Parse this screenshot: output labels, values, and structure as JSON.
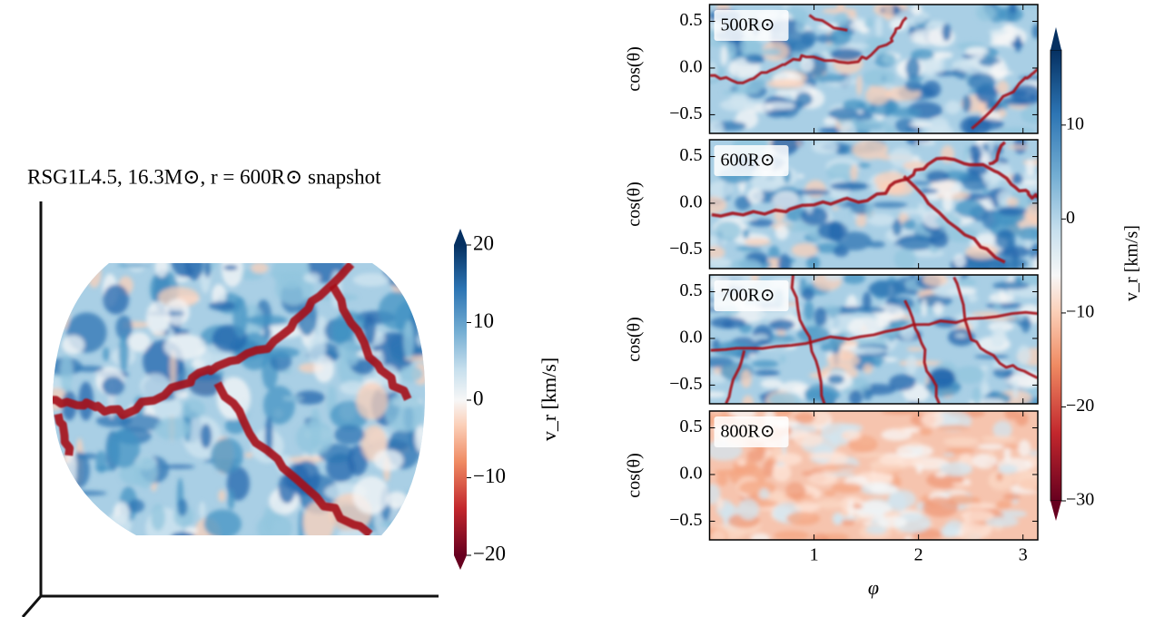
{
  "sphere_panel": {
    "title": "RSG1L4.5, 16.3M⊙,  r = 600R⊙ snapshot",
    "colorbar_label": "v_r [km/s]",
    "colorbar_lim": [
      -20,
      20
    ],
    "colorbar_ticks": [
      20,
      10,
      0,
      {
        "value": -10,
        "label": "−10"
      },
      {
        "value": -20,
        "label": "−20"
      }
    ]
  },
  "chart_data": [
    {
      "type": "heatmap",
      "label": "500R⊙",
      "ylabel": "cos(θ)",
      "xlim": [
        0,
        3.1416
      ],
      "ylim": [
        -0.7,
        0.68
      ],
      "xticks": [
        1,
        2,
        3
      ],
      "yticks": [
        0.5,
        {
          "value": 0,
          "label": "0.0"
        },
        {
          "value": -0.5,
          "label": "−0.5"
        }
      ]
    },
    {
      "type": "heatmap",
      "label": "600R⊙",
      "ylabel": "cos(θ)",
      "xlim": [
        0,
        3.1416
      ],
      "ylim": [
        -0.7,
        0.68
      ],
      "xticks": [
        1,
        2,
        3
      ],
      "yticks": [
        0.5,
        {
          "value": 0,
          "label": "0.0"
        },
        {
          "value": -0.5,
          "label": "−0.5"
        }
      ]
    },
    {
      "type": "heatmap",
      "label": "700R⊙",
      "ylabel": "cos(θ)",
      "xlim": [
        0,
        3.1416
      ],
      "ylim": [
        -0.7,
        0.68
      ],
      "xticks": [
        1,
        2,
        3
      ],
      "yticks": [
        0.5,
        {
          "value": 0,
          "label": "0.0"
        },
        {
          "value": -0.5,
          "label": "−0.5"
        }
      ]
    },
    {
      "type": "heatmap",
      "label": "800R⊙",
      "ylabel": "cos(θ)",
      "xlabel": "φ",
      "xlim": [
        0,
        3.1416
      ],
      "ylim": [
        -0.7,
        0.68
      ],
      "xticks": [
        1,
        2,
        3
      ],
      "yticks": [
        0.5,
        {
          "value": 0,
          "label": "0.0"
        },
        {
          "value": -0.5,
          "label": "−0.5"
        }
      ]
    }
  ],
  "colorbar": {
    "label": "v_r [km/s]",
    "lim": [
      -30,
      18
    ],
    "ticks": [
      10,
      0,
      {
        "value": -10,
        "label": "−10"
      },
      {
        "value": -20,
        "label": "−20"
      },
      {
        "value": -30,
        "label": "−30"
      }
    ]
  }
}
